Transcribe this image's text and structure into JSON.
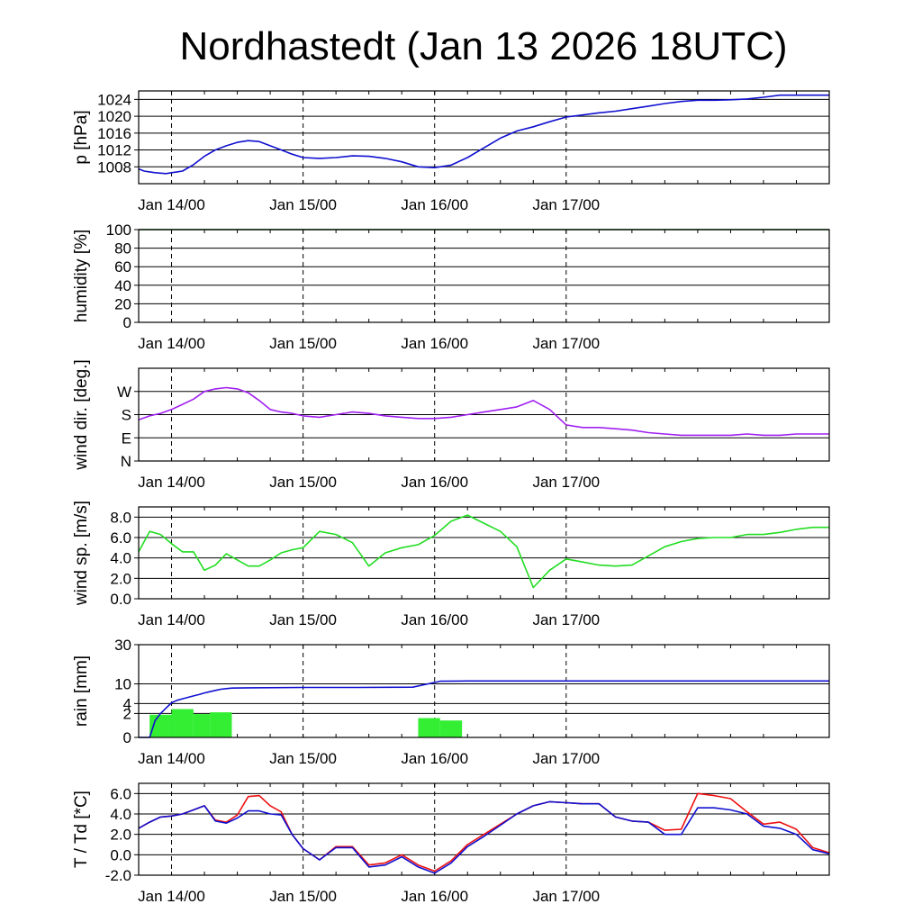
{
  "title": "Nordhastedt (Jan 13 2026 18UTC)",
  "colors": {
    "pressure": "#1010d0",
    "humidity": "#0a5a0a",
    "wind_dir": "#a020f0",
    "wind_speed": "#22dd22",
    "rain_bar": "#33ee33",
    "rain_cum": "#1010d0",
    "temperature": "#ee1010",
    "dewpoint": "#1010d0"
  },
  "x_tick_labels": [
    "Jan 14/00",
    "Jan 15/00",
    "Jan 16/00",
    "Jan 17/00"
  ],
  "chart_data": [
    {
      "type": "line",
      "id": "pressure",
      "ylabel": "p [hPa]",
      "ylim": [
        1004,
        1026
      ],
      "y_ticks": [
        1008,
        1012,
        1016,
        1020,
        1024
      ],
      "y_tick_labels": [
        "1008",
        "1012",
        "1016",
        "1020",
        "1024"
      ],
      "x_unit": "hours since Jan 13 18UTC",
      "series": [
        {
          "color_key": "pressure",
          "x": [
            0,
            1,
            2,
            3,
            4,
            5,
            6,
            7,
            8,
            10,
            12,
            14,
            16,
            18,
            20,
            22,
            24,
            26,
            28,
            30,
            33,
            36,
            39,
            42,
            45,
            48,
            51,
            54,
            57,
            60,
            63,
            66,
            69,
            72,
            75,
            78,
            81,
            84,
            87,
            90,
            93,
            96,
            99,
            102,
            105,
            108,
            111,
            114,
            117,
            120,
            123,
            126
          ],
          "y": [
            1007.5,
            1007,
            1006.8,
            1006.6,
            1006.5,
            1006.4,
            1006.6,
            1006.8,
            1007,
            1008.5,
            1010.5,
            1012,
            1013,
            1013.8,
            1014.2,
            1014,
            1013,
            1012,
            1011,
            1010.2,
            1010,
            1010.2,
            1010.6,
            1010.5,
            1010,
            1009.2,
            1008,
            1007.8,
            1008.4,
            1010.2,
            1012.5,
            1014.8,
            1016.5,
            1017.5,
            1018.7,
            1019.8,
            1020.3,
            1020.8,
            1021.2,
            1021.8,
            1022.4,
            1023,
            1023.5,
            1023.8,
            1023.8,
            1023.9,
            1024.1,
            1024.5,
            1025,
            1025,
            1025,
            1025
          ]
        }
      ]
    },
    {
      "type": "line",
      "id": "humidity",
      "ylabel": "humidity [%]",
      "ylim": [
        0,
        100
      ],
      "y_ticks": [
        0,
        20,
        40,
        60,
        80,
        100
      ],
      "y_tick_labels": [
        "0",
        "20",
        "40",
        "60",
        "80",
        "100"
      ],
      "series": [
        {
          "color_key": "humidity",
          "x": [
            0,
            2,
            4,
            6,
            8,
            10,
            12,
            14,
            16,
            18,
            20,
            22,
            24,
            26,
            28,
            30,
            33,
            36,
            39,
            42,
            45,
            48,
            51,
            54,
            57,
            60,
            63,
            66,
            69,
            72,
            75,
            78,
            81,
            84,
            87,
            90,
            93,
            96,
            99,
            102,
            105,
            108,
            111,
            114,
            117,
            120,
            123,
            126
          ],
          "y": [
            100,
            100,
            100,
            100,
            100,
            100,
            100,
            100,
            100,
            100,
            100,
            100,
            100,
            100,
            100,
            100,
            100,
            100,
            100,
            100,
            100,
            100,
            100,
            100,
            100,
            100,
            100,
            100,
            100,
            100,
            100,
            100,
            100,
            100,
            100,
            100,
            100,
            100,
            100,
            100,
            100,
            100,
            100,
            100,
            100,
            100,
            100,
            100
          ]
        }
      ]
    },
    {
      "type": "line",
      "id": "wind_dir",
      "ylabel": "wind dir. [deg.]",
      "ylim": [
        0,
        360
      ],
      "y_ticks": [
        0,
        90,
        180,
        270
      ],
      "y_tick_labels": [
        "N",
        "E",
        "S",
        "W"
      ],
      "series": [
        {
          "color_key": "wind_dir",
          "x": [
            0,
            2,
            4,
            6,
            8,
            10,
            12,
            14,
            16,
            18,
            20,
            22,
            24,
            26,
            28,
            30,
            33,
            36,
            39,
            42,
            45,
            48,
            51,
            54,
            57,
            60,
            63,
            66,
            69,
            72,
            75,
            78,
            81,
            84,
            87,
            90,
            93,
            96,
            99,
            102,
            105,
            108,
            111,
            114,
            117,
            120,
            123,
            126
          ],
          "y": [
            160,
            175,
            185,
            200,
            220,
            240,
            270,
            280,
            285,
            280,
            265,
            235,
            200,
            190,
            185,
            175,
            170,
            180,
            190,
            185,
            175,
            170,
            165,
            165,
            170,
            180,
            190,
            200,
            210,
            235,
            200,
            140,
            130,
            130,
            125,
            120,
            110,
            105,
            100,
            100,
            100,
            100,
            105,
            100,
            100,
            105,
            105,
            105
          ]
        }
      ]
    },
    {
      "type": "line",
      "id": "wind_speed",
      "ylabel": "wind sp. [m/s]",
      "ylim": [
        0,
        9
      ],
      "y_ticks": [
        0,
        2,
        4,
        6,
        8
      ],
      "y_tick_labels": [
        "0.0",
        "2.0",
        "4.0",
        "6.0",
        "8.0"
      ],
      "series": [
        {
          "color_key": "wind_speed",
          "x": [
            0,
            2,
            4,
            6,
            8,
            10,
            12,
            14,
            16,
            18,
            20,
            22,
            24,
            26,
            28,
            30,
            33,
            36,
            39,
            42,
            45,
            48,
            51,
            54,
            57,
            60,
            63,
            66,
            69,
            72,
            75,
            78,
            81,
            84,
            87,
            90,
            93,
            96,
            99,
            102,
            105,
            108,
            111,
            114,
            117,
            120,
            123,
            126
          ],
          "y": [
            4.6,
            6.6,
            6.3,
            5.4,
            4.6,
            4.6,
            2.8,
            3.3,
            4.4,
            3.8,
            3.2,
            3.2,
            3.8,
            4.5,
            4.8,
            5,
            6.6,
            6.3,
            5.5,
            3.2,
            4.5,
            5,
            5.3,
            6.2,
            7.6,
            8.2,
            7.4,
            6.6,
            5.1,
            1.1,
            2.8,
            3.9,
            3.6,
            3.3,
            3.2,
            3.3,
            4.2,
            5.1,
            5.6,
            5.9,
            6,
            6,
            6.3,
            6.3,
            6.5,
            6.8,
            7,
            7
          ]
        }
      ]
    },
    {
      "type": "bar",
      "id": "rain",
      "ylabel": "rain [mm]",
      "y_scale": "sqrt",
      "ylim": [
        0,
        30
      ],
      "y_ticks": [
        0,
        2,
        4,
        10,
        30
      ],
      "y_tick_labels": [
        "0",
        "2",
        "4",
        "10",
        "30"
      ],
      "bars": {
        "color_key": "rain_bar",
        "x_start": [
          2,
          6,
          10,
          13,
          51,
          55
        ],
        "x_end": [
          6,
          10,
          13,
          17,
          55,
          59
        ],
        "values": [
          1.8,
          2.8,
          1.9,
          2.2,
          1.3,
          1.0
        ]
      },
      "cumulative": {
        "color_key": "rain_cum",
        "x": [
          0,
          2,
          3,
          4,
          5,
          6,
          7,
          8,
          9,
          10,
          11,
          12,
          13,
          14,
          15,
          16,
          17,
          20,
          30,
          40,
          50,
          55,
          60,
          70,
          80,
          90,
          100,
          110,
          120,
          126
        ],
        "y": [
          0,
          0,
          1.0,
          2.0,
          3.0,
          4.2,
          4.8,
          5.2,
          5.6,
          6.0,
          6.4,
          6.9,
          7.3,
          7.7,
          8.1,
          8.3,
          8.5,
          8.6,
          8.7,
          8.7,
          8.8,
          11.0,
          11.1,
          11.1,
          11.1,
          11.1,
          11.1,
          11.1,
          11.1,
          11.1
        ]
      }
    },
    {
      "type": "line",
      "id": "temperature",
      "ylabel": "T / Td [*C]",
      "ylim": [
        -2,
        7
      ],
      "y_ticks": [
        -2,
        0,
        2,
        4,
        6
      ],
      "y_tick_labels": [
        "-2.0",
        "0.0",
        "2.0",
        "4.0",
        "6.0"
      ],
      "series": [
        {
          "color_key": "temperature",
          "x": [
            0,
            2,
            4,
            6,
            8,
            10,
            12,
            14,
            16,
            18,
            20,
            22,
            24,
            26,
            28,
            30,
            33,
            36,
            39,
            42,
            45,
            48,
            51,
            54,
            57,
            60,
            63,
            66,
            69,
            72,
            75,
            78,
            81,
            84,
            87,
            90,
            93,
            96,
            99,
            102,
            105,
            108,
            111,
            114,
            117,
            120,
            123,
            126
          ],
          "y": [
            2.6,
            3.2,
            3.7,
            3.8,
            4.0,
            4.4,
            4.8,
            3.4,
            3.2,
            3.9,
            5.7,
            5.8,
            4.8,
            4.2,
            2.0,
            0.6,
            -0.5,
            0.8,
            0.8,
            -1.0,
            -0.8,
            0.0,
            -1.0,
            -1.6,
            -0.6,
            1.0,
            2.0,
            3.0,
            4.0,
            4.8,
            5.2,
            5.1,
            5.0,
            5.0,
            3.7,
            3.3,
            3.2,
            2.4,
            2.5,
            6.0,
            5.8,
            5.5,
            4.2,
            3.0,
            3.2,
            2.5,
            0.7,
            0.2
          ]
        },
        {
          "color_key": "dewpoint",
          "x": [
            0,
            2,
            4,
            6,
            8,
            10,
            12,
            14,
            16,
            18,
            20,
            22,
            24,
            26,
            28,
            30,
            33,
            36,
            39,
            42,
            45,
            48,
            51,
            54,
            57,
            60,
            63,
            66,
            69,
            72,
            75,
            78,
            81,
            84,
            87,
            90,
            93,
            96,
            99,
            102,
            105,
            108,
            111,
            114,
            117,
            120,
            123,
            126
          ],
          "y": [
            2.6,
            3.2,
            3.7,
            3.8,
            4.0,
            4.4,
            4.8,
            3.3,
            3.1,
            3.6,
            4.3,
            4.3,
            4.0,
            3.9,
            2.0,
            0.6,
            -0.5,
            0.7,
            0.7,
            -1.2,
            -1.0,
            -0.2,
            -1.2,
            -1.8,
            -0.8,
            0.8,
            1.8,
            2.9,
            4.0,
            4.8,
            5.2,
            5.1,
            5.0,
            5.0,
            3.7,
            3.3,
            3.2,
            2.0,
            2.0,
            4.6,
            4.6,
            4.4,
            4.0,
            2.8,
            2.6,
            2.0,
            0.5,
            0.1
          ]
        }
      ]
    }
  ]
}
